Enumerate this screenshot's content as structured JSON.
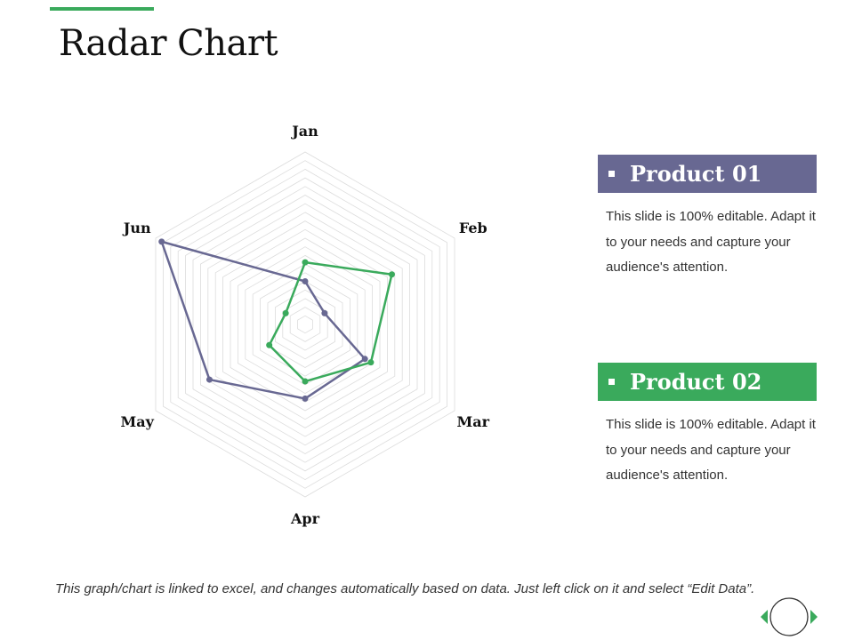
{
  "slide": {
    "title": "Radar Chart",
    "accent_color": "#3aaa5c",
    "footnote": "This graph/chart is linked to excel, and changes automatically based on data. Just left click on it and select “Edit Data”."
  },
  "legend": [
    {
      "name": "Product 01",
      "color": "#686892",
      "description": "This slide is 100% editable. Adapt it to your needs and capture your audience's attention."
    },
    {
      "name": "Product 02",
      "color": "#3aaa5c",
      "description": "This slide is 100% editable. Adapt it to your needs and capture your audience's attention."
    }
  ],
  "chart_data": {
    "type": "radar",
    "categories": [
      "Jan",
      "Feb",
      "Mar",
      "Apr",
      "May",
      "Jun"
    ],
    "rlim": [
      0,
      10
    ],
    "grid": true,
    "series": [
      {
        "name": "Product 01",
        "color": "#686892",
        "values": [
          2.5,
          1.3,
          4.0,
          4.3,
          6.4,
          9.6
        ]
      },
      {
        "name": "Product 02",
        "color": "#3aaa5c",
        "values": [
          3.6,
          5.8,
          4.4,
          3.3,
          2.4,
          1.3
        ]
      }
    ]
  },
  "nav": {
    "prev_icon": "triangle-left-icon",
    "home_icon": "circle-icon",
    "next_icon": "triangle-right-icon",
    "color": "#3aaa5c"
  }
}
